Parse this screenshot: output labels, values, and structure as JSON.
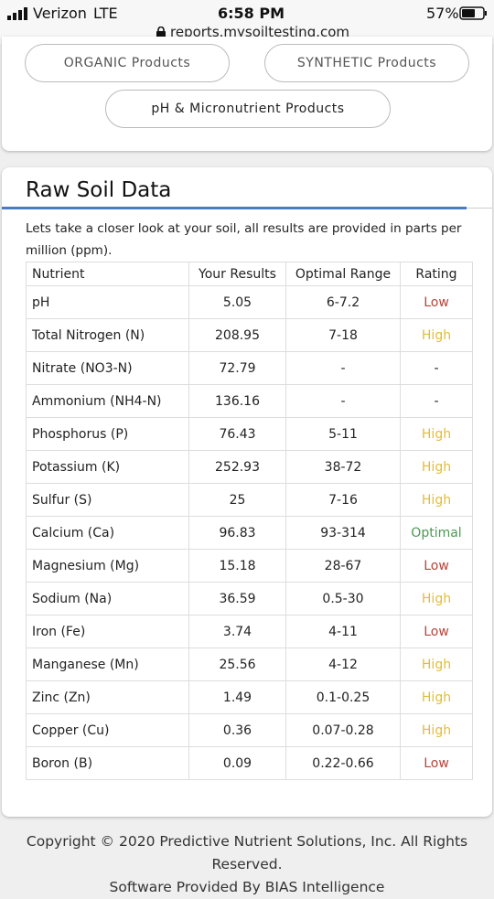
{
  "status_bar": {
    "carrier": "Verizon",
    "network": "LTE",
    "time": "6:58 PM",
    "battery": "57%",
    "url": "reports.mysoiltesting.com"
  },
  "nav": {
    "buttons": [
      "ORGANIC Products",
      "SYNTHETIC Products",
      "pH & Micronutrient Products"
    ]
  },
  "section": {
    "title": "Raw Soil Data",
    "description": "Lets take a closer look at your soil, all results are provided in parts per million (ppm)."
  },
  "table": {
    "header": [
      "Nutrient",
      "Your Results",
      "Optimal Range",
      "Rating"
    ],
    "rows": [
      [
        "pH",
        "5.05",
        "6-7.2",
        "Low"
      ],
      [
        "Total Nitrogen (N)",
        "208.95",
        "7-18",
        "High"
      ],
      [
        "Nitrate (NO3-N)",
        "72.79",
        "-",
        "-"
      ],
      [
        "Ammonium (NH4-N)",
        "136.16",
        "-",
        "-"
      ],
      [
        "Phosphorus (P)",
        "76.43",
        "5-11",
        "High"
      ],
      [
        "Potassium (K)",
        "252.93",
        "38-72",
        "High"
      ],
      [
        "Sulfur (S)",
        "25",
        "7-16",
        "High"
      ],
      [
        "Calcium (Ca)",
        "96.83",
        "93-314",
        "Optimal"
      ],
      [
        "Magnesium (Mg)",
        "15.18",
        "28-67",
        "Low"
      ],
      [
        "Sodium (Na)",
        "36.59",
        "0.5-30",
        "High"
      ],
      [
        "Iron (Fe)",
        "3.74",
        "4-11",
        "Low"
      ],
      [
        "Manganese (Mn)",
        "25.56",
        "4-12",
        "High"
      ],
      [
        "Zinc (Zn)",
        "1.49",
        "0.1-0.25",
        "High"
      ],
      [
        "Copper (Cu)",
        "0.36",
        "0.07-0.28",
        "High"
      ],
      [
        "Boron (B)",
        "0.09",
        "0.22-0.66",
        "Low"
      ]
    ],
    "rating_colors": {
      "Low": "#b5453c",
      "High": "#e3bd34",
      "Optimal": "#4a9a50"
    }
  },
  "footer": {
    "copyright": "Copyright © 2020 Predictive Nutrient Solutions, Inc. All Rights Reserved.",
    "credit": "Software Provided By BIAS Intelligence"
  }
}
